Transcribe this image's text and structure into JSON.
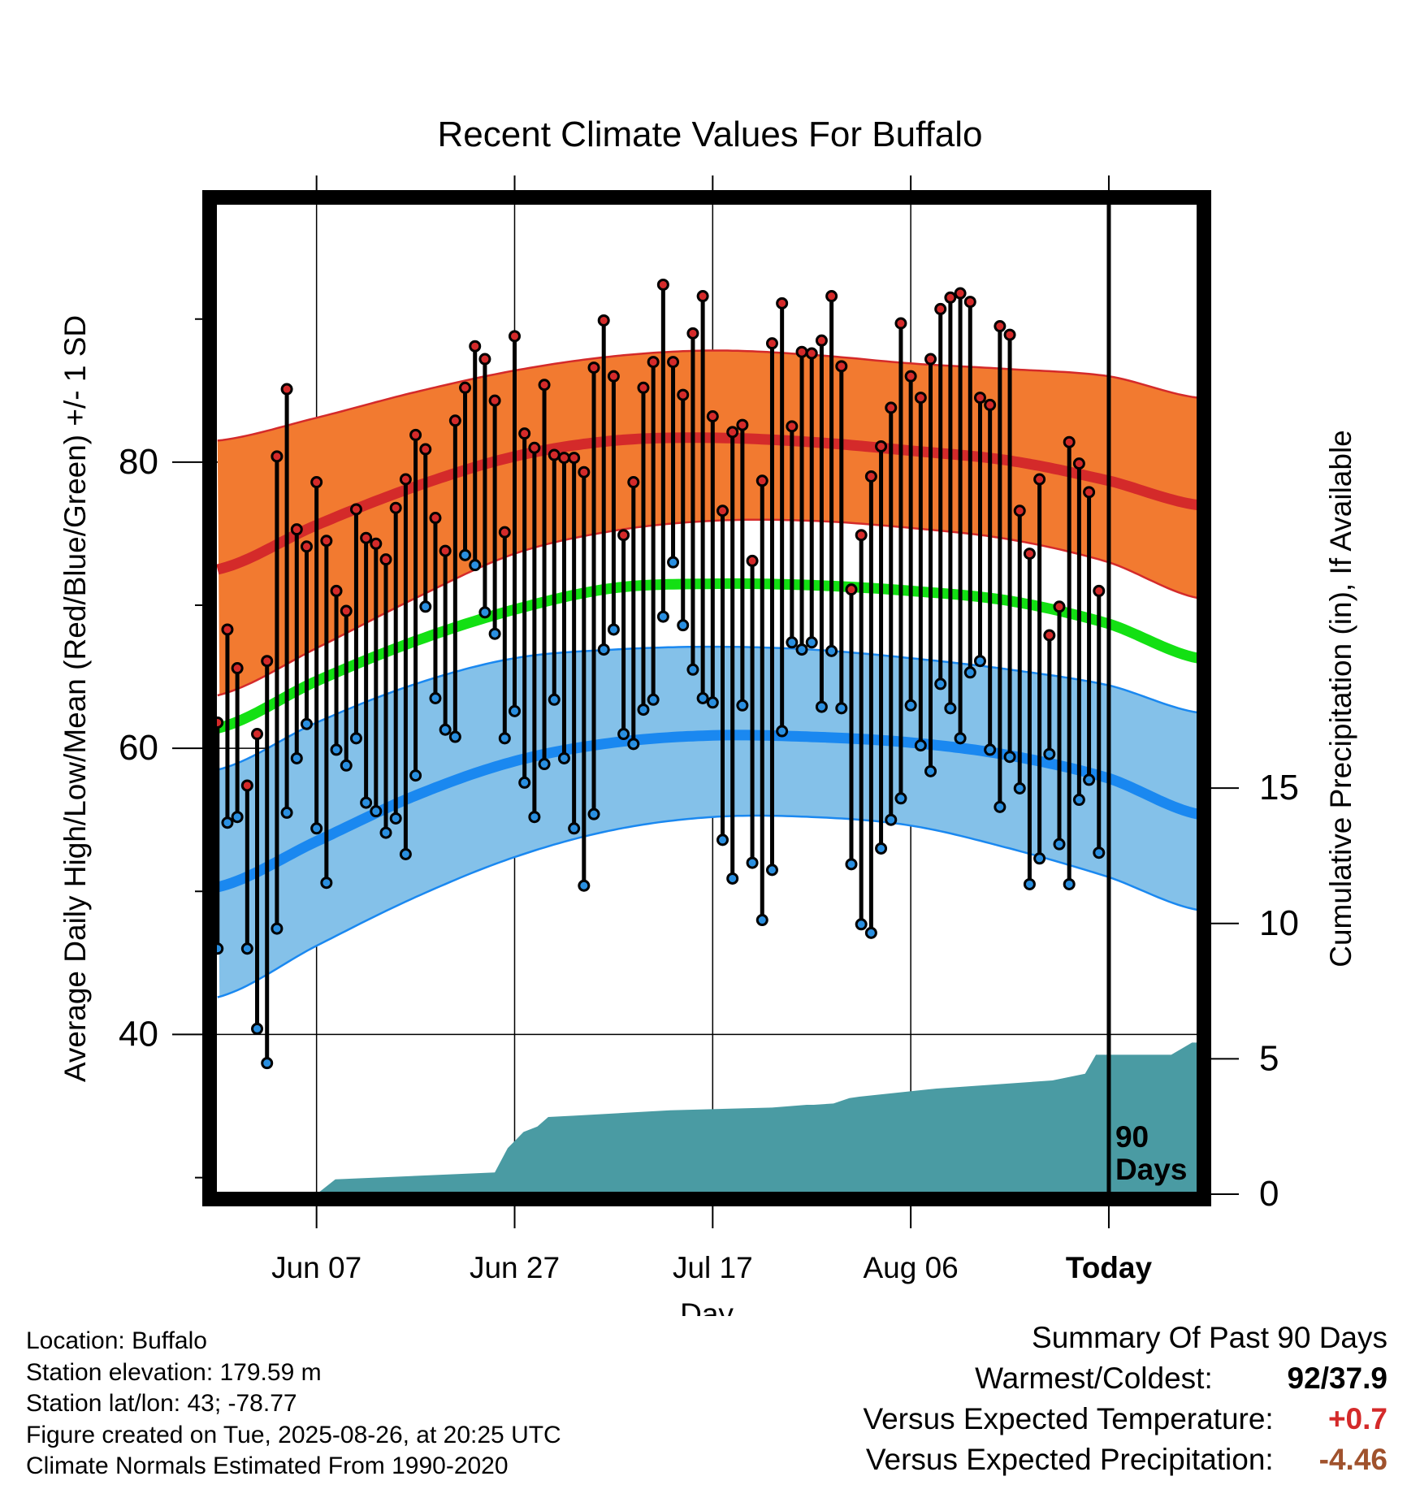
{
  "chart_data": {
    "type": "line",
    "title": "Recent Climate Values For Buffalo",
    "xlabel": "Day",
    "ylabel": "Average Daily High/Low/Mean (Red/Blue/Green) +/- 1 SD",
    "y2label": "Cumulative Precipitation (in), If Available",
    "ylim": [
      28.5,
      98.5
    ],
    "y_ticks": [
      40,
      60,
      80
    ],
    "y2lim": [
      0,
      37
    ],
    "y2_ticks": [
      0,
      5,
      10,
      15
    ],
    "xlim": [
      -0.8,
      99.6
    ],
    "x_ticks": [
      {
        "day": 10,
        "label": "Jun 07"
      },
      {
        "day": 30,
        "label": "Jun 27"
      },
      {
        "day": 50,
        "label": "Jul 17"
      },
      {
        "day": 70,
        "label": "Aug 06"
      },
      {
        "day": 90,
        "label": "Today"
      }
    ],
    "today_marker": {
      "day": 90,
      "label_line1": "90",
      "label_line2": "Days"
    },
    "grid": true,
    "normals": {
      "x": [
        0,
        10,
        20,
        30,
        40,
        50,
        60,
        70,
        80,
        90,
        99
      ],
      "high_mean": [
        72.5,
        75.6,
        78.3,
        80.4,
        81.5,
        81.7,
        81.4,
        80.8,
        80.1,
        78.7,
        77.0
      ],
      "high_upper": [
        81.5,
        83.1,
        84.9,
        86.4,
        87.4,
        87.8,
        87.5,
        86.9,
        86.5,
        86.0,
        84.5
      ],
      "high_lower": [
        63.7,
        67.0,
        70.5,
        73.6,
        75.2,
        75.9,
        75.9,
        75.4,
        74.6,
        73.0,
        70.5
      ],
      "mean": [
        61.4,
        64.7,
        67.5,
        69.7,
        71.2,
        71.5,
        71.4,
        71.0,
        70.3,
        68.7,
        66.3
      ],
      "low_mean": [
        50.3,
        53.5,
        56.7,
        59.1,
        60.4,
        60.9,
        60.8,
        60.4,
        59.5,
        57.9,
        55.4
      ],
      "low_upper": [
        58.5,
        61.8,
        64.5,
        66.3,
        66.9,
        67.1,
        66.9,
        66.3,
        65.5,
        64.4,
        62.5
      ],
      "low_lower": [
        42.6,
        46.2,
        49.6,
        52.4,
        54.3,
        55.2,
        55.2,
        54.6,
        53.0,
        51.0,
        48.7
      ]
    },
    "series": [
      {
        "name": "High",
        "color": "#d42a2a",
        "values": [
          61.8,
          68.3,
          65.6,
          57.4,
          61.0,
          66.1,
          80.4,
          85.1,
          75.3,
          74.1,
          78.6,
          74.5,
          71.0,
          69.6,
          76.7,
          74.7,
          74.3,
          73.2,
          76.8,
          78.8,
          81.9,
          80.9,
          76.1,
          73.8,
          82.9,
          85.2,
          88.1,
          87.2,
          84.3,
          75.1,
          88.8,
          82.0,
          81.0,
          85.4,
          80.5,
          80.3,
          80.3,
          79.3,
          86.6,
          89.9,
          86.0,
          74.9,
          78.6,
          85.2,
          87.0,
          92.4,
          87.0,
          84.7,
          89.0,
          91.6,
          83.2,
          76.6,
          82.1,
          82.6,
          73.1,
          78.7,
          88.3,
          91.1,
          82.5,
          87.7,
          87.6,
          88.5,
          91.6,
          86.7,
          71.1,
          74.9,
          79.0,
          81.1,
          83.8,
          89.7,
          86.0,
          84.5,
          87.2,
          90.7,
          91.5,
          91.8,
          91.2,
          84.5,
          84.0,
          89.5,
          88.9,
          76.6,
          73.6,
          78.8,
          67.9,
          69.9,
          81.4,
          79.9,
          77.9,
          71.0
        ]
      },
      {
        "name": "Low",
        "color": "#2a8fe0",
        "values": [
          46.0,
          54.8,
          55.2,
          46.0,
          40.4,
          38.0,
          47.4,
          55.5,
          59.3,
          61.7,
          54.4,
          50.6,
          59.9,
          58.8,
          60.7,
          56.2,
          55.6,
          54.1,
          55.1,
          52.6,
          58.1,
          69.9,
          63.5,
          61.3,
          60.8,
          73.5,
          72.8,
          69.5,
          68.0,
          60.7,
          62.6,
          57.6,
          55.2,
          58.9,
          63.4,
          59.3,
          54.4,
          50.4,
          55.4,
          66.9,
          68.3,
          61.0,
          60.3,
          62.7,
          63.4,
          69.2,
          73.0,
          68.6,
          65.5,
          63.5,
          63.2,
          53.6,
          50.9,
          63.0,
          52.0,
          48.0,
          51.5,
          61.2,
          67.4,
          66.9,
          67.4,
          62.9,
          66.8,
          62.8,
          51.9,
          47.7,
          47.1,
          53.0,
          55.0,
          56.5,
          63.0,
          60.2,
          58.4,
          64.5,
          62.8,
          60.7,
          65.3,
          66.1,
          59.9,
          55.9,
          59.4,
          57.2,
          50.5,
          52.3,
          59.6,
          53.3,
          50.5,
          56.4,
          57.8,
          52.7
        ]
      },
      {
        "name": "Cumulative Precipitation",
        "color": "#4a9ba3",
        "x": [
          0,
          10.0,
          11.9,
          28.0,
          29.3,
          30.9,
          32.3,
          33.4,
          36.0,
          45.7,
          56.0,
          59.5,
          60.2,
          62.2,
          63.8,
          64.8,
          72.6,
          84.3,
          87.6,
          88.7,
          96.3,
          98.4,
          99.6
        ],
        "values": [
          0,
          0,
          0.55,
          0.8,
          1.7,
          2.3,
          2.5,
          2.85,
          2.9,
          3.1,
          3.2,
          3.3,
          3.3,
          3.35,
          3.55,
          3.6,
          3.9,
          4.2,
          4.45,
          5.15,
          5.15,
          5.6,
          5.6
        ]
      }
    ]
  },
  "info": {
    "location": "Location: Buffalo",
    "elevation": "Station elevation: 179.59 m",
    "latlon": "Station lat/lon: 43; -78.77",
    "created": "Figure created on Tue, 2025-08-26, at 20:25 UTC",
    "normals": "Climate Normals Estimated From 1990-2020"
  },
  "summary": {
    "heading": "Summary Of Past 90 Days",
    "warmest_label": "Warmest/Coldest:",
    "warmest_value": "92/37.9",
    "temp_label": "Versus Expected Temperature:",
    "temp_value": "+0.7",
    "temp_color": "#d42a2a",
    "precip_label": "Versus Expected Precipitation:",
    "precip_value": "-4.46",
    "precip_color": "#a0522d"
  },
  "colors": {
    "high_band": "#f27a30",
    "high_line": "#d42a2a",
    "mean_line": "#13e013",
    "low_band": "#84c1e9",
    "low_line": "#1a88f0",
    "precip_fill": "#4a9ba3"
  }
}
